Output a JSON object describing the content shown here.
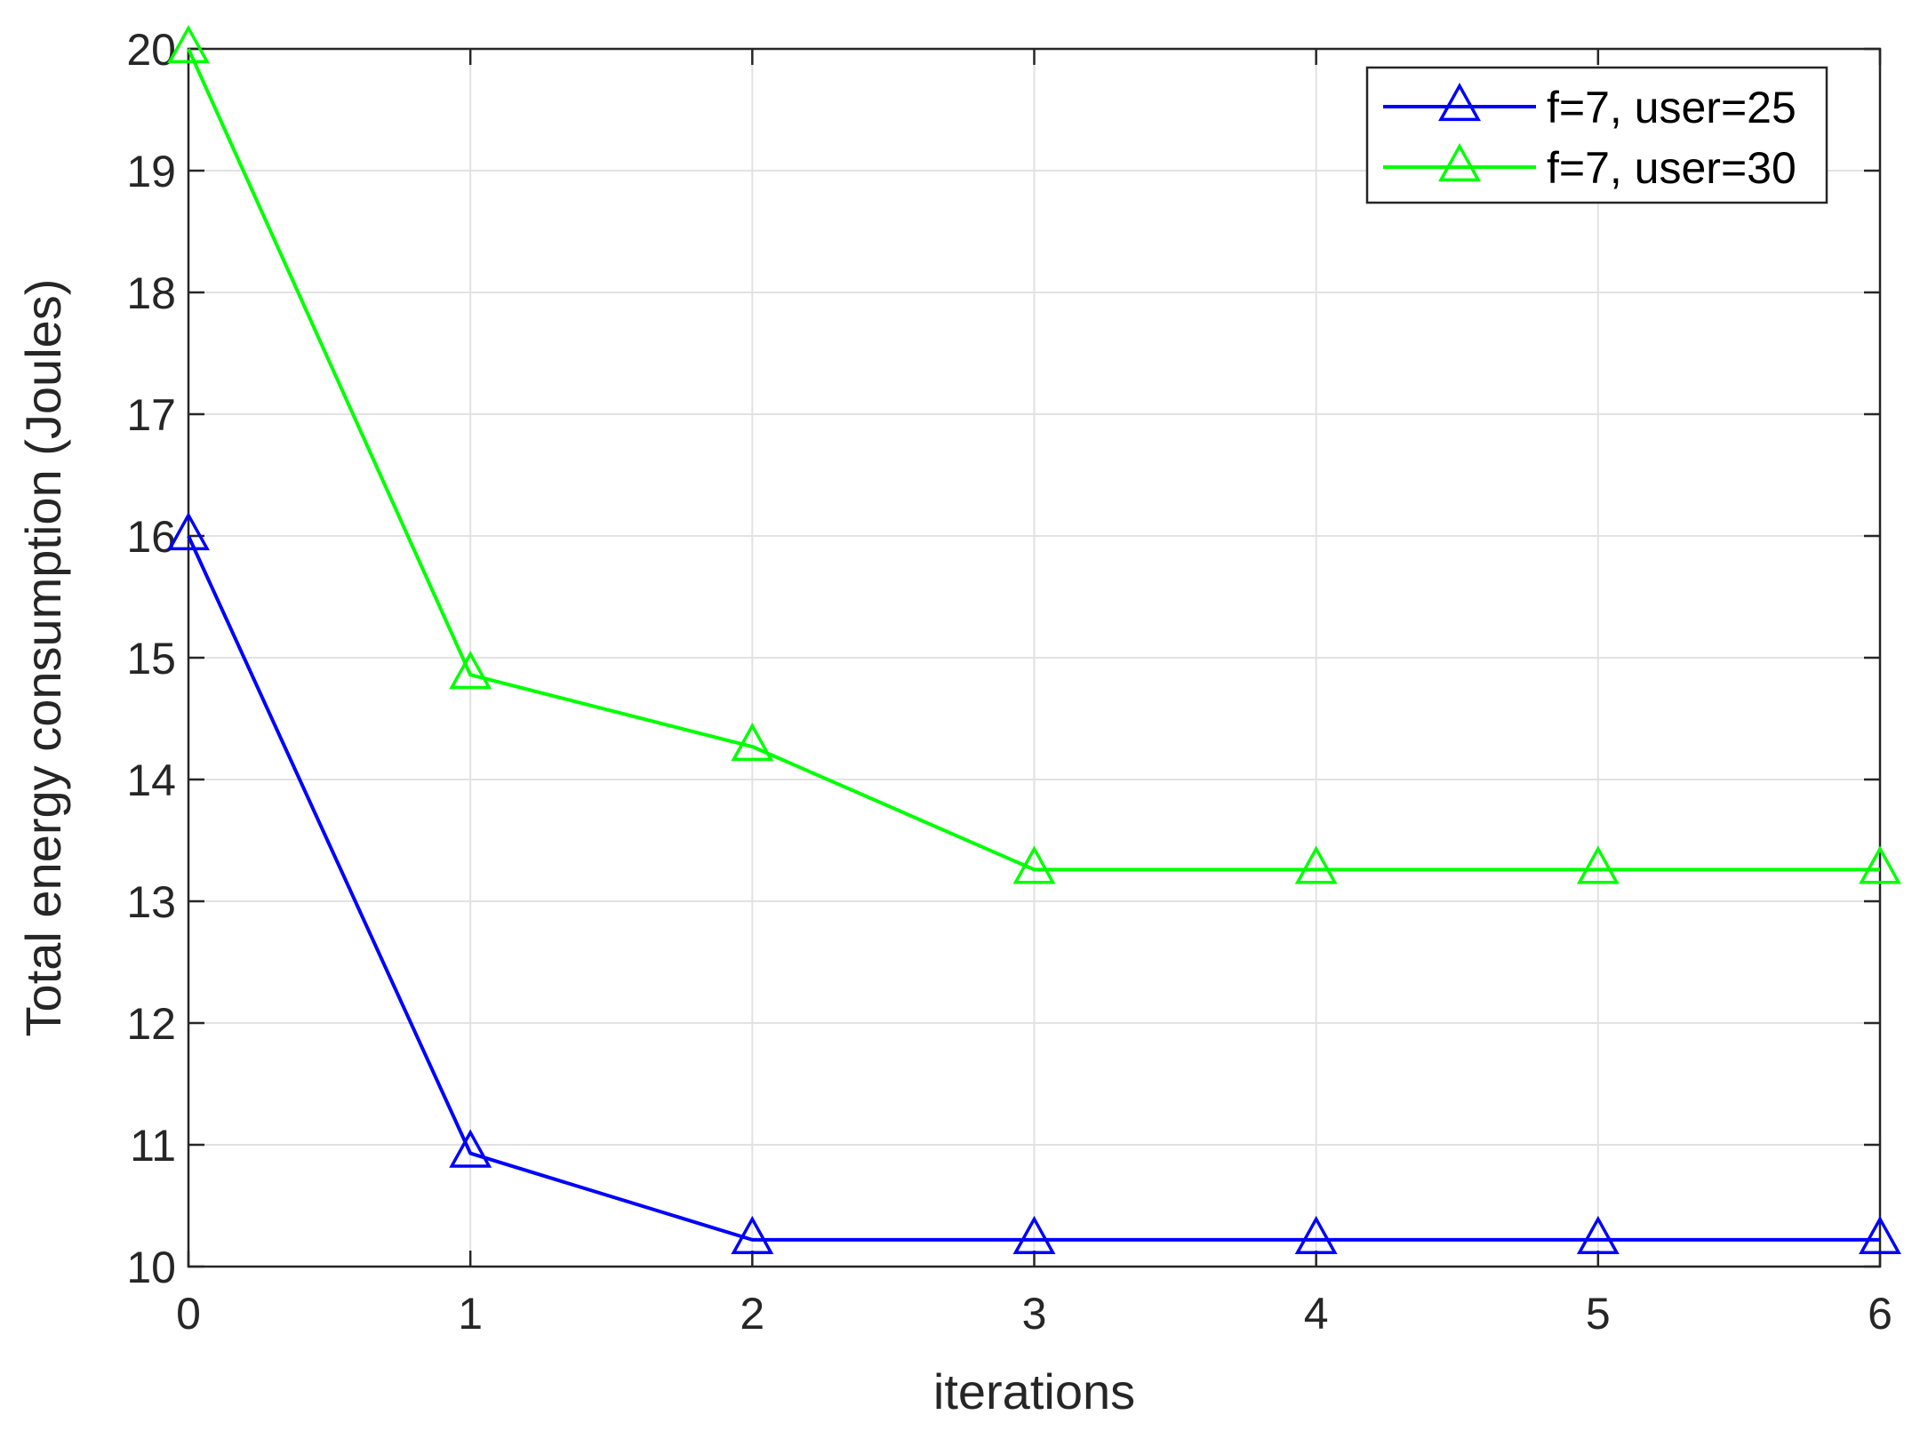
{
  "chart_data": {
    "type": "line",
    "title": "",
    "xlabel": "iterations",
    "ylabel": "Total energy consumption (Joules)",
    "xlim": [
      0,
      6
    ],
    "ylim": [
      10,
      20
    ],
    "xticks": [
      0,
      1,
      2,
      3,
      4,
      5,
      6
    ],
    "yticks": [
      10,
      11,
      12,
      13,
      14,
      15,
      16,
      17,
      18,
      19,
      20
    ],
    "grid": true,
    "legend_position": "top-right",
    "marker": "triangle",
    "x": [
      0,
      1,
      2,
      3,
      4,
      5,
      6
    ],
    "series": [
      {
        "name": "f=7, user=25",
        "color": "#0000ff",
        "values": [
          16.0,
          10.93,
          10.22,
          10.22,
          10.22,
          10.22,
          10.22
        ]
      },
      {
        "name": "f=7, user=30",
        "color": "#00ff00",
        "values": [
          20.0,
          14.86,
          14.27,
          13.26,
          13.26,
          13.26,
          13.26
        ]
      }
    ]
  }
}
